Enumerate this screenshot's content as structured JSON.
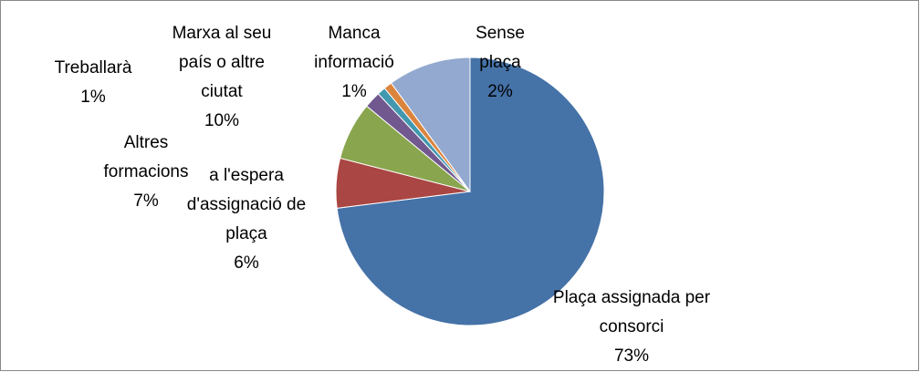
{
  "chart_data": {
    "type": "pie",
    "categories": [
      "Plaça assignada per consorci",
      "a l'espera d'assignació de plaça",
      "Altres formacions",
      "Sense plaça",
      "Treballarà",
      "Manca informació",
      "Marxa al seu país o altre ciutat"
    ],
    "values": [
      73,
      6,
      7,
      2,
      1,
      1,
      10
    ],
    "value_labels": [
      "73%",
      "6%",
      "7%",
      "2%",
      "1%",
      "1%",
      "10%"
    ],
    "colors": [
      "#4572a7",
      "#aa4643",
      "#89a54e",
      "#71588f",
      "#4198af",
      "#db843d",
      "#93a9cf"
    ]
  }
}
